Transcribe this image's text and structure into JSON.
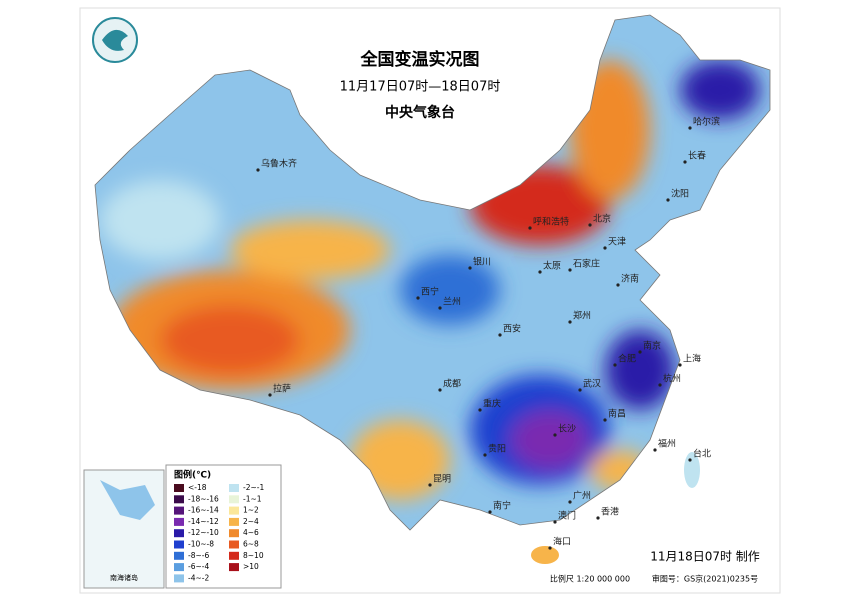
{
  "header": {
    "title": "全国变温实况图",
    "subtitle": "11月17日07时—18日07时",
    "agency": "中央气象台"
  },
  "legend": {
    "title": "图例(℃)",
    "items": [
      {
        "label": "<-18",
        "color": "#4a0b1e"
      },
      {
        "label": "-18~-16",
        "color": "#3a0a4a"
      },
      {
        "label": "-16~-14",
        "color": "#55157a"
      },
      {
        "label": "-14~-12",
        "color": "#7a2bb0"
      },
      {
        "label": "-12~-10",
        "color": "#2a1aa8"
      },
      {
        "label": "-10~-8",
        "color": "#1f3fcf"
      },
      {
        "label": "-8~-6",
        "color": "#2f6fd6"
      },
      {
        "label": "-6~-4",
        "color": "#5b9ee0"
      },
      {
        "label": "-4~-2",
        "color": "#8ec4ea"
      },
      {
        "label": "-2~-1",
        "color": "#bfe3f0"
      },
      {
        "label": "-1~1",
        "color": "#e8f4d8"
      },
      {
        "label": "1~2",
        "color": "#fbe79a"
      },
      {
        "label": "2~4",
        "color": "#f7b44a"
      },
      {
        "label": "4~6",
        "color": "#f08a2c"
      },
      {
        "label": "6~8",
        "color": "#e85a22"
      },
      {
        "label": "8~10",
        "color": "#d42a1c"
      },
      {
        "label": ">10",
        "color": "#a8101a"
      }
    ]
  },
  "cities": [
    "乌鲁木齐",
    "拉萨",
    "西宁",
    "兰州",
    "银川",
    "呼和浩特",
    "北京",
    "天津",
    "石家庄",
    "太原",
    "济南",
    "郑州",
    "西安",
    "成都",
    "重庆",
    "贵阳",
    "昆明",
    "南宁",
    "广州",
    "澳门",
    "香港",
    "海口",
    "福州",
    "台北",
    "南昌",
    "长沙",
    "武汉",
    "合肥",
    "南京",
    "上海",
    "杭州",
    "沈阳",
    "长春",
    "哈尔滨"
  ],
  "inset": {
    "label": "南海诸岛"
  },
  "footer": {
    "made": "11月18日07时 制作",
    "scale": "比例尺 1:20 000 000",
    "review": "审图号：GS京(2021)0235号"
  }
}
